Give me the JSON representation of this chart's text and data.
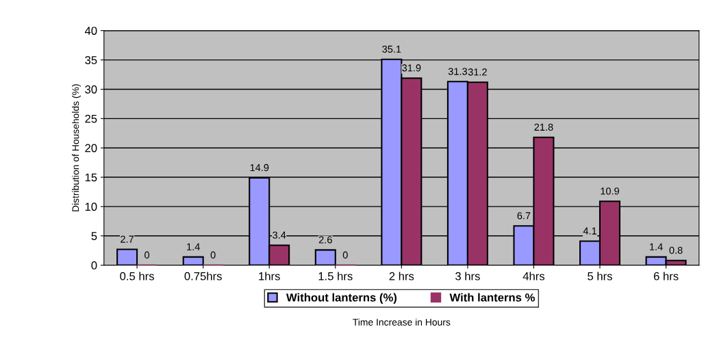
{
  "chart_data": {
    "type": "bar",
    "xlabel": "Time Increase in Hours",
    "ylabel": "Distribution of Households (%)",
    "categories": [
      "0.5 hrs",
      "0.75hrs",
      "1hrs",
      "1.5 hrs",
      "2 hrs",
      "3 hrs",
      "4hrs",
      "5 hrs",
      "6 hrs"
    ],
    "series": [
      {
        "name": "Without lanterns (%)",
        "color": "#9999ff",
        "values": [
          2.7,
          1.4,
          14.9,
          2.6,
          35.1,
          31.3,
          6.7,
          4.1,
          1.4
        ]
      },
      {
        "name": "With lanterns %",
        "color": "#993366",
        "values": [
          0,
          0,
          3.4,
          0,
          31.9,
          31.2,
          21.8,
          10.9,
          0.8
        ]
      }
    ],
    "ylim": [
      0,
      40
    ],
    "yticks": [
      0,
      5,
      10,
      15,
      20,
      25,
      30,
      35,
      40
    ],
    "grid": "y",
    "legend": "bottom",
    "data_labels": true
  }
}
